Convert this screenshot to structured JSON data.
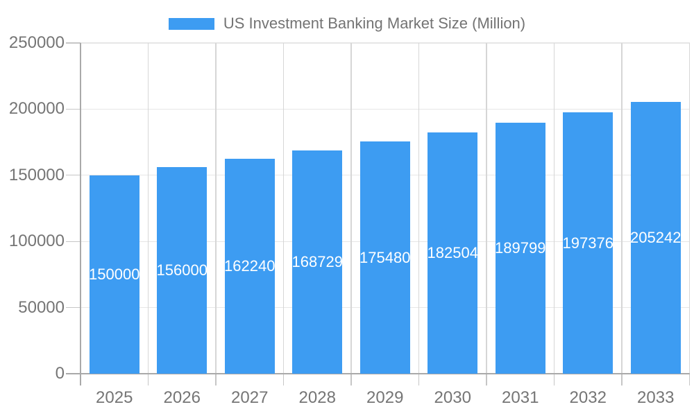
{
  "chart_data": {
    "type": "bar",
    "title": "US Investment Banking Market Size (Million)",
    "categories": [
      "2025",
      "2026",
      "2027",
      "2028",
      "2029",
      "2030",
      "2031",
      "2032",
      "2033"
    ],
    "values": [
      150000,
      156000,
      162240,
      168729,
      175480,
      182504,
      189799,
      197376,
      205242
    ],
    "xlabel": "",
    "ylabel": "",
    "ylim": [
      0,
      250000
    ],
    "yticks": [
      0,
      50000,
      100000,
      150000,
      200000,
      250000
    ],
    "grid": true,
    "legend_position": "top",
    "value_labels": "inside-center",
    "colors": {
      "bar": "#3d9cf2",
      "value_label_text": "#ffffff",
      "axis_text": "#757575",
      "legend_text": "#737373",
      "axis_line": "#a9a9a9",
      "tick_line": "#c6c6c6",
      "h_gridline": "#e6e6e6",
      "v_gridline": "#d6d6d6",
      "background": "#ffffff"
    }
  }
}
